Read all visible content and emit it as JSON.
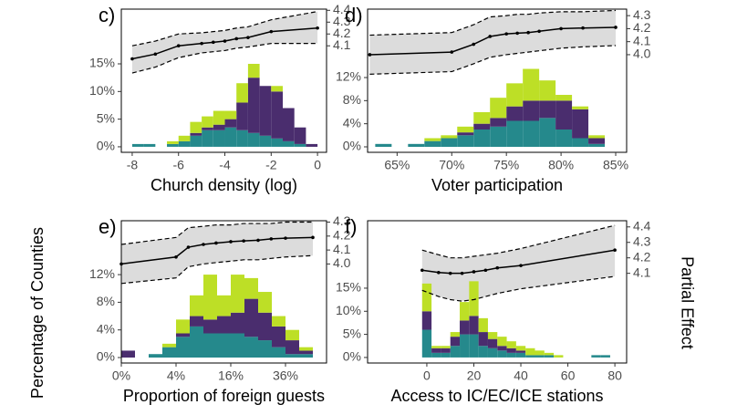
{
  "y_label": "Percentage of Counties",
  "y2_label": "Partial Effect",
  "chart_data": [
    {
      "type": "histogram",
      "panel_label": "c)",
      "x_label": "Church density (log)",
      "bins": [
        -8,
        -7.5,
        -7,
        -6.5,
        -6,
        -5.5,
        -5,
        -4.5,
        -4,
        -3.5,
        -3,
        -2.5,
        -2,
        -1.5,
        -1,
        -0.5,
        0
      ],
      "series": [
        {
          "color": "#25898c",
          "values": [
            0.5,
            0.5,
            0,
            0.5,
            1,
            2,
            3,
            3,
            3.5,
            3,
            2.5,
            2,
            1.5,
            1,
            0.5,
            0
          ]
        },
        {
          "color": "#4a2d6e",
          "values": [
            0,
            0,
            0,
            0,
            0,
            0.5,
            0.5,
            1,
            1.5,
            5,
            10,
            9,
            8.5,
            6,
            3,
            0.5
          ]
        },
        {
          "color": "#bddf26",
          "values": [
            0,
            0,
            0,
            0.5,
            1,
            2,
            2,
            2.5,
            1.5,
            3.5,
            2.5,
            0,
            1,
            0,
            0,
            0
          ]
        }
      ],
      "xlim": [
        -8.47,
        0.39
      ],
      "xticks": [
        -8,
        -6,
        -4,
        -2,
        0
      ],
      "ylim": [
        -1,
        24.9
      ],
      "yticks": [
        {
          "value": 0,
          "label": "0%"
        },
        {
          "value": 5,
          "label": "5%"
        },
        {
          "value": 10,
          "label": "10%"
        },
        {
          "value": 15,
          "label": "15%"
        }
      ],
      "y2lim": [
        3.2,
        4.41
      ],
      "y2ticks": [
        4.1,
        4.2,
        4.3,
        4.4
      ],
      "effect": {
        "type": "line",
        "axis": "y2",
        "color": "#000000",
        "band_color": "#dcdcdc",
        "x": [
          -8,
          -7,
          -6,
          -5,
          -4.5,
          -4,
          -3.5,
          -3,
          -2,
          0
        ],
        "values": [
          3.99,
          4.03,
          4.1,
          4.12,
          4.13,
          4.14,
          4.16,
          4.17,
          4.22,
          4.25
        ],
        "lower": [
          3.87,
          3.92,
          4.0,
          4.04,
          4.05,
          4.06,
          4.08,
          4.09,
          4.12,
          4.12
        ],
        "upper": [
          4.1,
          4.14,
          4.2,
          4.21,
          4.22,
          4.23,
          4.25,
          4.26,
          4.32,
          4.39
        ]
      }
    },
    {
      "type": "histogram",
      "panel_label": "d)",
      "x_label": "Voter participation",
      "bins": [
        63,
        64.5,
        66,
        67.5,
        69,
        70.5,
        72,
        73.5,
        75,
        76.5,
        78,
        79.5,
        81,
        82.5,
        84
      ],
      "series": [
        {
          "color": "#25898c",
          "values": [
            0.5,
            0,
            0.5,
            1,
            1.5,
            2,
            3,
            3.5,
            4.5,
            4.5,
            5,
            3,
            1.5,
            0.5
          ]
        },
        {
          "color": "#4a2d6e",
          "values": [
            0,
            0,
            0,
            0,
            0,
            0.5,
            1,
            1.5,
            2.5,
            3.5,
            3,
            5,
            5,
            1
          ]
        },
        {
          "color": "#bddf26",
          "values": [
            0,
            0,
            0,
            0.5,
            0.5,
            1,
            2,
            3.5,
            4,
            5.5,
            3.5,
            1,
            0.5,
            0.5
          ]
        }
      ],
      "xlim": [
        62.3,
        86.0
      ],
      "xticks": [
        {
          "value": 65,
          "label": "65%"
        },
        {
          "value": 70,
          "label": "70%"
        },
        {
          "value": 75,
          "label": "75%"
        },
        {
          "value": 80,
          "label": "80%"
        },
        {
          "value": 85,
          "label": "85%"
        }
      ],
      "ylim": [
        -0.95,
        23.85
      ],
      "yticks": [
        {
          "value": 0,
          "label": "0%"
        },
        {
          "value": 4,
          "label": "4%"
        },
        {
          "value": 8,
          "label": "8%"
        },
        {
          "value": 12,
          "label": "12%"
        }
      ],
      "y2lim": [
        3.25,
        4.35
      ],
      "y2ticks": [
        {
          "value": 4,
          "label": "4.0"
        },
        4.1,
        4.2,
        4.3
      ],
      "effect": {
        "type": "line",
        "axis": "y2",
        "color": "#000000",
        "band_color": "#dcdcdc",
        "x": [
          62.5,
          70,
          72,
          73.5,
          75,
          76,
          77,
          78,
          80,
          82,
          85
        ],
        "values": [
          4.0,
          4.02,
          4.08,
          4.14,
          4.16,
          4.165,
          4.17,
          4.18,
          4.2,
          4.205,
          4.21
        ],
        "lower": [
          3.85,
          3.87,
          3.93,
          3.98,
          4.0,
          4.01,
          4.02,
          4.03,
          4.05,
          4.06,
          4.07
        ],
        "upper": [
          4.15,
          4.17,
          4.23,
          4.29,
          4.3,
          4.31,
          4.31,
          4.32,
          4.33,
          4.33,
          4.34
        ]
      }
    },
    {
      "type": "histogram",
      "panel_label": "e)",
      "x_label": "Proportion of foreign guests",
      "xscale": "sqrt",
      "bins": [
        0,
        0.25,
        1,
        2.25,
        4,
        6.25,
        9,
        12.25,
        16,
        20.25,
        25,
        30.25,
        36,
        42.25,
        49,
        56.25
      ],
      "series": [
        {
          "color": "#25898c",
          "values": [
            0,
            0,
            0.5,
            1.5,
            3,
            4.5,
            3.5,
            3.5,
            3.5,
            3,
            2.5,
            1.5,
            0.5,
            0.5,
            0
          ]
        },
        {
          "color": "#4a2d6e",
          "values": [
            1,
            0,
            0,
            0,
            0.5,
            1.5,
            2,
            2.5,
            3,
            5.5,
            4,
            3,
            2,
            0.5,
            0
          ]
        },
        {
          "color": "#bddf26",
          "values": [
            0,
            0,
            0,
            0.5,
            2,
            3,
            6.5,
            3,
            5.5,
            3,
            3,
            1.5,
            1.5,
            0.5,
            0
          ]
        }
      ],
      "xlim": [
        0,
        56.25
      ],
      "xticks": [
        {
          "value": 0,
          "label": "0%"
        },
        {
          "value": 4,
          "label": "4%"
        },
        {
          "value": 16,
          "label": "16%"
        },
        {
          "value": 36,
          "label": "36%"
        }
      ],
      "ylim": [
        -0.79,
        19.8
      ],
      "yticks": [
        {
          "value": 0,
          "label": "0%"
        },
        {
          "value": 4,
          "label": "4%"
        },
        {
          "value": 8,
          "label": "8%"
        },
        {
          "value": 12,
          "label": "12%"
        }
      ],
      "y2lim": [
        3.29,
        4.31
      ],
      "y2ticks": [
        {
          "value": 4,
          "label": "4.0"
        },
        4.1,
        4.2,
        4.3
      ],
      "effect": {
        "type": "line",
        "axis": "y2",
        "color": "#000000",
        "band_color": "#dcdcdc",
        "x": [
          0,
          4,
          6,
          9,
          12,
          16,
          20,
          25,
          30,
          36,
          49
        ],
        "values": [
          4.0,
          4.05,
          4.12,
          4.14,
          4.15,
          4.16,
          4.165,
          4.17,
          4.18,
          4.185,
          4.19
        ],
        "lower": [
          3.86,
          3.9,
          3.98,
          4.0,
          4.01,
          4.02,
          4.03,
          4.03,
          4.04,
          4.05,
          4.06
        ],
        "upper": [
          4.14,
          4.19,
          4.26,
          4.27,
          4.28,
          4.28,
          4.29,
          4.29,
          4.29,
          4.3,
          4.3
        ]
      }
    },
    {
      "type": "histogram",
      "panel_label": "f)",
      "x_label": "Access to IC/EC/ICE stations",
      "bins": [
        -2,
        2,
        6,
        10,
        14,
        18,
        22,
        26,
        30,
        34,
        38,
        42,
        46,
        50,
        54,
        58,
        62,
        66,
        70,
        74,
        78,
        82
      ],
      "series": [
        {
          "color": "#25898c",
          "values": [
            6,
            1,
            1,
            2.5,
            5,
            5,
            2.5,
            2,
            1.5,
            1,
            1,
            0.5,
            0.5,
            0.5,
            0,
            0,
            0,
            0,
            0.5,
            0.5,
            0
          ]
        },
        {
          "color": "#4a2d6e",
          "values": [
            4,
            1,
            1,
            2,
            3,
            4,
            3,
            2,
            1,
            1,
            0.5,
            0,
            0,
            0,
            0,
            0,
            0,
            0,
            0,
            0,
            0
          ]
        },
        {
          "color": "#bddf26",
          "values": [
            6,
            0.5,
            0.5,
            1,
            4,
            7.5,
            3,
            1.5,
            2,
            1.5,
            1,
            1.5,
            1,
            0.5,
            0.5,
            0,
            0,
            0,
            0,
            0,
            0
          ]
        }
      ],
      "xlim": [
        -25.2,
        85
      ],
      "xticks": [
        0,
        20,
        40,
        60,
        80
      ],
      "ylim": [
        -1.2,
        29.6
      ],
      "yticks": [
        {
          "value": 0,
          "label": "0%"
        },
        {
          "value": 5,
          "label": "5%"
        },
        {
          "value": 10,
          "label": "10%"
        },
        {
          "value": 15,
          "label": "15%"
        }
      ],
      "y2lim": [
        3.52,
        4.44
      ],
      "y2ticks": [
        4.1,
        4.2,
        4.3,
        4.4
      ],
      "effect": {
        "type": "line",
        "axis": "y2",
        "color": "#000000",
        "band_color": "#dcdcdc",
        "x": [
          -2,
          5,
          10,
          15,
          20,
          25,
          30,
          40,
          80
        ],
        "values": [
          4.12,
          4.105,
          4.1,
          4.1,
          4.11,
          4.12,
          4.135,
          4.15,
          4.25
        ],
        "lower": [
          3.99,
          3.95,
          3.93,
          3.92,
          3.93,
          3.95,
          3.97,
          4.0,
          4.08
        ],
        "upper": [
          4.25,
          4.22,
          4.2,
          4.2,
          4.21,
          4.22,
          4.23,
          4.26,
          4.41
        ]
      }
    }
  ]
}
